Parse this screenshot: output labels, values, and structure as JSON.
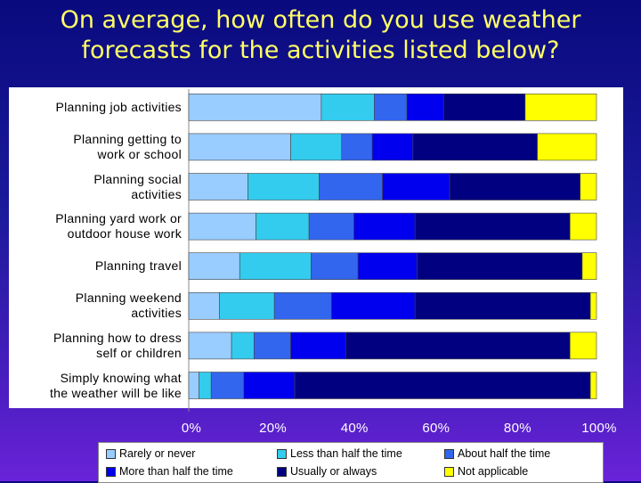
{
  "title": "On average, how often do you use weather\nforecasts for the activities listed below?",
  "chart_data": {
    "type": "bar",
    "orientation": "horizontal",
    "stacked": "percent",
    "categories": [
      "Planning job activities",
      "Planning getting to\nwork or school",
      "Planning social\nactivities",
      "Planning yard work or\noutdoor house work",
      "Planning travel",
      "Planning weekend\nactivities",
      "Planning how to dress\nself or children",
      "Simply knowing what\nthe weather will be like"
    ],
    "series": [
      {
        "name": "Rarely or never",
        "color": "#99ccff",
        "values": [
          32.5,
          25,
          14.5,
          16.5,
          12.5,
          7.5,
          10.5,
          2.5
        ]
      },
      {
        "name": "Less than half the time",
        "color": "#33ccee",
        "values": [
          13,
          12.5,
          17.5,
          13,
          17.5,
          13.5,
          5.5,
          3
        ]
      },
      {
        "name": "About half the time",
        "color": "#3366ee",
        "values": [
          8,
          7.5,
          15.5,
          11,
          11.5,
          14,
          9,
          8
        ]
      },
      {
        "name": "More than half the time",
        "color": "#0000ee",
        "values": [
          9,
          10,
          16.5,
          15,
          14.5,
          20.5,
          13.5,
          12.5
        ]
      },
      {
        "name": "Usually or always",
        "color": "#000080",
        "values": [
          20,
          30.5,
          32,
          38,
          40.5,
          43,
          55,
          72.5
        ]
      },
      {
        "name": "Not applicable",
        "color": "#ffff00",
        "values": [
          17.5,
          14.5,
          4,
          6.5,
          3.5,
          1.5,
          6.5,
          1.5
        ]
      }
    ],
    "x_ticks": [
      "0%",
      "20%",
      "40%",
      "60%",
      "80%",
      "100%"
    ],
    "xlim": [
      0,
      100
    ]
  }
}
